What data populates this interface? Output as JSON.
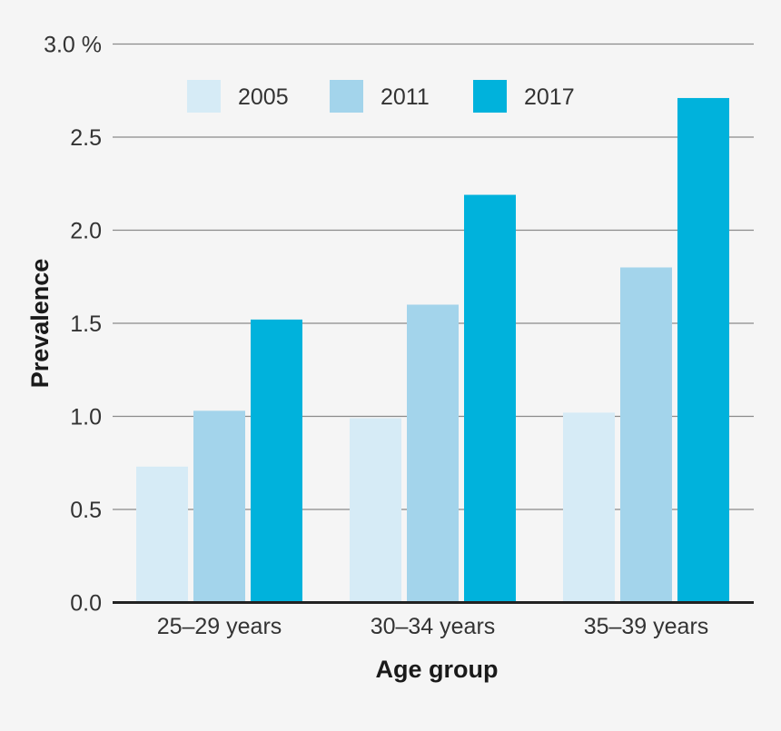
{
  "chart_data": {
    "type": "bar",
    "categories": [
      "25–29 years",
      "30–34 years",
      "35–39 years"
    ],
    "series": [
      {
        "name": "2005",
        "color": "#d6ebf6",
        "values": [
          0.73,
          0.99,
          1.02
        ]
      },
      {
        "name": "2011",
        "color": "#a3d4eb",
        "values": [
          1.03,
          1.6,
          1.8
        ]
      },
      {
        "name": "2017",
        "color": "#00b2dc",
        "values": [
          1.52,
          2.19,
          2.71
        ]
      }
    ],
    "xlabel": "Age group",
    "ylabel": "Prevalence",
    "ylim": [
      0,
      3.0
    ],
    "yticks": [
      "0.0",
      "0.5",
      "1.0",
      "1.5",
      "2.0",
      "2.5",
      "3.0 %"
    ],
    "ytick_values": [
      0,
      0.5,
      1.0,
      1.5,
      2.0,
      2.5,
      3.0
    ],
    "grid": true,
    "legend_position": "top"
  }
}
